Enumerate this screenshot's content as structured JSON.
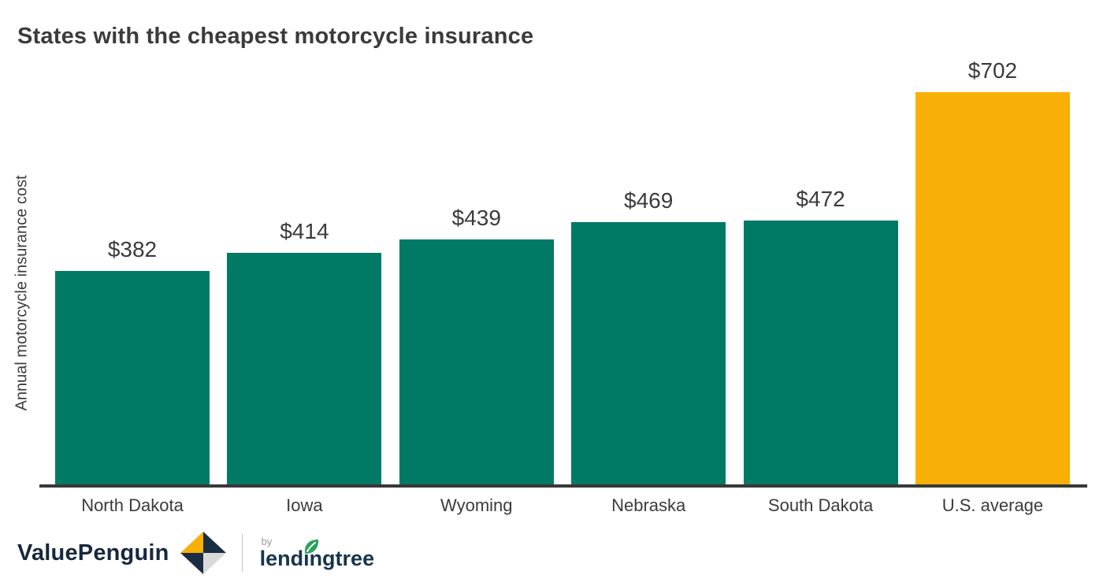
{
  "title": "States with the cheapest motorcycle insurance",
  "chart_data": {
    "type": "bar",
    "categories": [
      "North Dakota",
      "Iowa",
      "Wyoming",
      "Nebraska",
      "South Dakota",
      "U.S. average"
    ],
    "values": [
      382,
      414,
      439,
      469,
      472,
      702
    ],
    "value_labels": [
      "$382",
      "$414",
      "$439",
      "$469",
      "$472",
      "$702"
    ],
    "title": "States with the cheapest motorcycle insurance",
    "xlabel": "",
    "ylabel": "Annual motorcycle insurance cost",
    "ylim": [
      0,
      702
    ],
    "grid": false,
    "legend": false,
    "bar_colors": [
      "#007A64",
      "#007A64",
      "#007A64",
      "#007A64",
      "#007A64",
      "#F9B006"
    ],
    "base_bar_color": "#007A64",
    "highlight_bar_color": "#F9B006",
    "axis_line_color": "#383838",
    "text_color": "#3B3B3B"
  },
  "branding": {
    "valuepenguin_label": "ValuePenguin",
    "by_label": "by",
    "lendingtree_label": "lendingtree",
    "navy": "#16283C",
    "leaf_green": "#2AA05A",
    "icon_yellow": "#F9B006",
    "icon_navy": "#1B2D42",
    "icon_gray": "#D9D9D9"
  }
}
